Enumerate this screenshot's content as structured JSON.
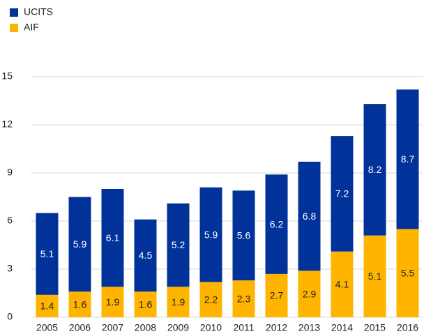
{
  "chart_data": {
    "type": "stacked_bar",
    "categories": [
      "2005",
      "2006",
      "2007",
      "2008",
      "2009",
      "2010",
      "2011",
      "2012",
      "2013",
      "2014",
      "2015",
      "2016"
    ],
    "series": [
      {
        "name": "AIF",
        "color": "#ffb400",
        "values": [
          1.4,
          1.6,
          1.9,
          1.6,
          1.9,
          2.2,
          2.3,
          2.7,
          2.9,
          4.1,
          5.1,
          5.5
        ]
      },
      {
        "name": "UCITS",
        "color": "#003299",
        "values": [
          5.1,
          5.9,
          6.1,
          4.5,
          5.2,
          5.9,
          5.6,
          6.2,
          6.8,
          7.2,
          8.2,
          8.7
        ]
      }
    ],
    "legend_order": [
      "UCITS",
      "AIF"
    ],
    "ylim": [
      0,
      15
    ],
    "yticks": [
      0,
      3,
      6,
      9,
      12,
      15
    ],
    "grid": true
  }
}
